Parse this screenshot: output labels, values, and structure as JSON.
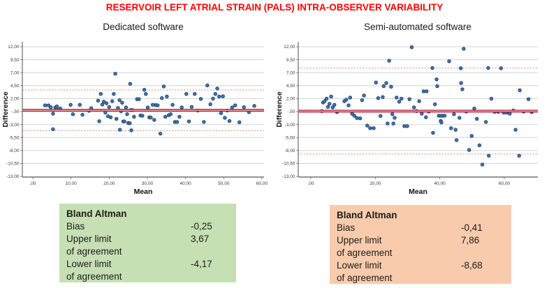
{
  "figure": {
    "title": "RESERVOIR LEFT ATRIAL STRAIN (PALS) INTRA-OBSERVER VARIABILITY",
    "title_color": "#ff0000"
  },
  "colors": {
    "marker_fill": "#3e79b6",
    "marker_stroke": "#1c3c63",
    "bias_line": "#b41227",
    "bias_line_core": "#f3dadd",
    "loa_line": "#e2848f",
    "gridline": "#d7d7d7",
    "axis": "#6b6b6b",
    "tick_text": "#3a3a3a"
  },
  "chart_data": [
    {
      "type": "scatter",
      "title": "Dedicated software",
      "xlabel": "Mean",
      "ylabel": "Difference",
      "x_range": [
        -2.74,
        60.55
      ],
      "y_range": [
        -13.13,
        12.94
      ],
      "x_ticks": [
        {
          "v": 0,
          "label": ",00"
        },
        {
          "v": 10,
          "label": "10,00"
        },
        {
          "v": 20,
          "label": "20,00"
        },
        {
          "v": 30,
          "label": "30,00"
        },
        {
          "v": 40,
          "label": "40,00"
        },
        {
          "v": 50,
          "label": "50,00"
        },
        {
          "v": 60,
          "label": "60,00"
        }
      ],
      "y_ticks": [
        {
          "v": 12,
          "label": "12,00"
        },
        {
          "v": 9.5,
          "label": "9,50"
        },
        {
          "v": 7,
          "label": "7,00"
        },
        {
          "v": 4.5,
          "label": "4,50"
        },
        {
          "v": 2,
          "label": "2,00"
        },
        {
          "v": -0.5,
          "label": "-,50"
        },
        {
          "v": -3,
          "label": "-3,00"
        },
        {
          "v": -5.5,
          "label": "-5,50"
        },
        {
          "v": -8,
          "label": "-8,00"
        },
        {
          "v": -10.5,
          "label": "-10,50"
        },
        {
          "v": -13,
          "label": "-13,00"
        }
      ],
      "bias": -0.25,
      "upper_loa": 3.67,
      "lower_loa": -4.17,
      "grid": true,
      "points": [
        [
          3.2,
          0.7
        ],
        [
          4.1,
          0.7
        ],
        [
          4.7,
          0.35
        ],
        [
          5.3,
          -0.9
        ],
        [
          5.3,
          -3.9
        ],
        [
          5.9,
          0.3
        ],
        [
          6.3,
          0.5
        ],
        [
          6.8,
          -0.15
        ],
        [
          7.2,
          0.1
        ],
        [
          9.9,
          0.8
        ],
        [
          10.5,
          -1.0
        ],
        [
          12.3,
          0.8
        ],
        [
          13.0,
          -1.1
        ],
        [
          14.7,
          -0.35
        ],
        [
          15.3,
          0.15
        ],
        [
          17.1,
          1.6
        ],
        [
          17.4,
          -2.35
        ],
        [
          17.8,
          2.9
        ],
        [
          18.2,
          0.85
        ],
        [
          18.6,
          1.4
        ],
        [
          19.0,
          -0.7
        ],
        [
          19.3,
          1.1
        ],
        [
          19.7,
          -1.4
        ],
        [
          20.0,
          0.4
        ],
        [
          20.4,
          -1.6
        ],
        [
          20.8,
          1.5
        ],
        [
          21.2,
          2.9
        ],
        [
          21.6,
          6.8
        ],
        [
          21.9,
          -1.9
        ],
        [
          22.3,
          0.2
        ],
        [
          22.7,
          1.7
        ],
        [
          22.8,
          -4.0
        ],
        [
          23.1,
          -0.45
        ],
        [
          23.4,
          1.2
        ],
        [
          23.7,
          -2.4
        ],
        [
          24.0,
          -2.4
        ],
        [
          24.4,
          0.3
        ],
        [
          24.7,
          -1.0
        ],
        [
          25.0,
          -2.7
        ],
        [
          25.4,
          -2.75
        ],
        [
          25.5,
          4.85
        ],
        [
          25.6,
          -0.2
        ],
        [
          25.8,
          -4.1
        ],
        [
          26.1,
          -0.2
        ],
        [
          26.5,
          -1.5
        ],
        [
          27.3,
          1.9
        ],
        [
          27.8,
          1.9
        ],
        [
          28.2,
          -1.25
        ],
        [
          28.7,
          -1.3
        ],
        [
          29.2,
          3.7
        ],
        [
          29.6,
          2.9
        ],
        [
          30.1,
          0.3
        ],
        [
          30.5,
          -1.6
        ],
        [
          30.9,
          -1.65
        ],
        [
          31.4,
          0.8
        ],
        [
          31.8,
          -2.1
        ],
        [
          32.2,
          0.75
        ],
        [
          32.7,
          0.7
        ],
        [
          33.4,
          -4.75
        ],
        [
          33.8,
          2.1
        ],
        [
          34.3,
          4.35
        ],
        [
          34.7,
          -1.5
        ],
        [
          35.1,
          2.4
        ],
        [
          35.6,
          -1.2
        ],
        [
          36.1,
          -1.0
        ],
        [
          36.6,
          0.8
        ],
        [
          37.2,
          -2.5
        ],
        [
          37.8,
          -2.5
        ],
        [
          38.4,
          -1.5
        ],
        [
          39.0,
          0.3
        ],
        [
          40.2,
          2.9
        ],
        [
          40.9,
          -2.4
        ],
        [
          41.6,
          0.4
        ],
        [
          42.4,
          2.9
        ],
        [
          43.2,
          -0.3
        ],
        [
          44.0,
          1.95
        ],
        [
          44.8,
          -2.5
        ],
        [
          45.7,
          4.55
        ],
        [
          46.5,
          0.9
        ],
        [
          47.2,
          2.0
        ],
        [
          47.8,
          2.9
        ],
        [
          48.3,
          3.95
        ],
        [
          48.8,
          2.4
        ],
        [
          49.3,
          -0.8
        ],
        [
          49.8,
          2.45
        ],
        [
          50.3,
          -1.7
        ],
        [
          50.9,
          -0.3
        ],
        [
          51.5,
          -2.3
        ],
        [
          52.2,
          0.3
        ],
        [
          53.0,
          0.7
        ],
        [
          54.1,
          -2.55
        ],
        [
          55.3,
          0.35
        ],
        [
          56.6,
          -0.6
        ],
        [
          58.0,
          0.6
        ]
      ]
    },
    {
      "type": "scatter",
      "title": "Semi-automated software",
      "xlabel": "Mean",
      "ylabel": "Difference",
      "x_range": [
        -3.9,
        70.4
      ],
      "y_range": [
        -13.13,
        12.94
      ],
      "x_ticks": [
        {
          "v": 0,
          "label": ",00"
        },
        {
          "v": 20,
          "label": "20,00"
        },
        {
          "v": 40,
          "label": "40,00"
        },
        {
          "v": 60,
          "label": "60,00"
        }
      ],
      "y_ticks": [
        {
          "v": 12,
          "label": "12,00"
        },
        {
          "v": 9.5,
          "label": "9,50"
        },
        {
          "v": 7,
          "label": "7,00"
        },
        {
          "v": 4.5,
          "label": "4,50"
        },
        {
          "v": 2,
          "label": "2,00"
        },
        {
          "v": -0.5,
          "label": "-,50"
        },
        {
          "v": -3,
          "label": "-3,00"
        },
        {
          "v": -5.5,
          "label": "-5,50"
        },
        {
          "v": -8,
          "label": "-8,00"
        },
        {
          "v": -10.5,
          "label": "-10,50"
        },
        {
          "v": -13,
          "label": "-13,00"
        }
      ],
      "bias": -0.41,
      "upper_loa": 7.86,
      "lower_loa": -8.68,
      "grid": true,
      "points": [
        [
          3.4,
          -0.4
        ],
        [
          3.8,
          1.25
        ],
        [
          4.3,
          1.5
        ],
        [
          4.9,
          2.0
        ],
        [
          5.3,
          0.4
        ],
        [
          5.8,
          1.0
        ],
        [
          6.3,
          2.4
        ],
        [
          6.8,
          0.3
        ],
        [
          7.3,
          0.8
        ],
        [
          8.1,
          -0.6
        ],
        [
          10.4,
          1.5
        ],
        [
          11.0,
          1.8
        ],
        [
          11.7,
          0.7
        ],
        [
          12.2,
          2.2
        ],
        [
          12.8,
          -0.9
        ],
        [
          13.5,
          -1.3
        ],
        [
          14.3,
          -1.75
        ],
        [
          15.3,
          -1.8
        ],
        [
          15.9,
          1.7
        ],
        [
          16.5,
          2.6
        ],
        [
          17.5,
          -3.2
        ],
        [
          18.4,
          -3.7
        ],
        [
          19.5,
          -3.7
        ],
        [
          20.2,
          5.1
        ],
        [
          20.9,
          2.1
        ],
        [
          21.6,
          -1.35
        ],
        [
          22.3,
          2.3
        ],
        [
          22.6,
          4.4
        ],
        [
          23.4,
          5.0
        ],
        [
          23.8,
          -2.8
        ],
        [
          24.3,
          9.3
        ],
        [
          24.9,
          4.3
        ],
        [
          25.3,
          -1.0
        ],
        [
          25.6,
          -2.8
        ],
        [
          26.0,
          -1.7
        ],
        [
          26.6,
          2.2
        ],
        [
          27.4,
          1.4
        ],
        [
          28.1,
          2.0
        ],
        [
          29.0,
          -3.3
        ],
        [
          29.9,
          -3.3
        ],
        [
          30.6,
          1.9
        ],
        [
          31.3,
          11.9
        ],
        [
          32.0,
          0.3
        ],
        [
          32.8,
          -0.4
        ],
        [
          33.6,
          1.5
        ],
        [
          34.4,
          -0.9
        ],
        [
          35.0,
          3.4
        ],
        [
          35.9,
          3.4
        ],
        [
          35.7,
          -1.6
        ],
        [
          36.6,
          -0.5
        ],
        [
          37.7,
          7.9
        ],
        [
          37.9,
          -4.6
        ],
        [
          38.5,
          0.9
        ],
        [
          39.0,
          5.7
        ],
        [
          39.2,
          4.4
        ],
        [
          39.7,
          -1.3
        ],
        [
          40.3,
          -1.3
        ],
        [
          40.9,
          -1.3
        ],
        [
          41.5,
          -1.3
        ],
        [
          40.3,
          -2.3
        ],
        [
          40.5,
          -2.6
        ],
        [
          42.9,
          9.2
        ],
        [
          43.5,
          -3.7
        ],
        [
          44.4,
          -1.0
        ],
        [
          44.9,
          -4.0
        ],
        [
          45.2,
          -6.0
        ],
        [
          46.1,
          -1.7
        ],
        [
          46.5,
          7.85
        ],
        [
          46.6,
          5.0
        ],
        [
          47.0,
          3.8
        ],
        [
          47.4,
          11.6
        ],
        [
          48.2,
          -0.5
        ],
        [
          49.1,
          -7.9
        ],
        [
          49.9,
          -5.2
        ],
        [
          50.7,
          0.1
        ],
        [
          51.5,
          -1.9
        ],
        [
          52.3,
          -7.0
        ],
        [
          53.2,
          -10.7
        ],
        [
          54.3,
          -2.5
        ],
        [
          55.0,
          7.9
        ],
        [
          55.2,
          -9.0
        ],
        [
          56.0,
          2.0
        ],
        [
          57.0,
          -0.55
        ],
        [
          58.1,
          -0.55
        ],
        [
          59.0,
          7.85
        ],
        [
          59.8,
          -0.7
        ],
        [
          60.7,
          -0.7
        ],
        [
          61.7,
          -0.9
        ],
        [
          62.8,
          -0.3
        ],
        [
          63.5,
          -4.0
        ],
        [
          64.6,
          -9.0
        ],
        [
          64.8,
          3.6
        ],
        [
          66.0,
          -0.5
        ],
        [
          67.5,
          1.9
        ],
        [
          68.5,
          -0.6
        ]
      ]
    }
  ],
  "stats_boxes": [
    {
      "header": "Bland Altman",
      "bg": "#c6e0b4",
      "rows": [
        {
          "label": "Bias",
          "value": "-0,25"
        },
        {
          "label": "Upper limit",
          "value": "3,67"
        },
        {
          "label": "of agreement",
          "value": ""
        },
        {
          "label": "Lower limit",
          "value": "-4,17"
        },
        {
          "label": "of agreement",
          "value": ""
        }
      ]
    },
    {
      "header": "Bland Altman",
      "bg": "#f8cbad",
      "rows": [
        {
          "label": "Bias",
          "value": "-0,41"
        },
        {
          "label": "Upper limit",
          "value": "7,86"
        },
        {
          "label": "of agreement",
          "value": ""
        },
        {
          "label": "Lower limit",
          "value": "-8,68"
        },
        {
          "label": "of agreement",
          "value": ""
        }
      ]
    }
  ]
}
